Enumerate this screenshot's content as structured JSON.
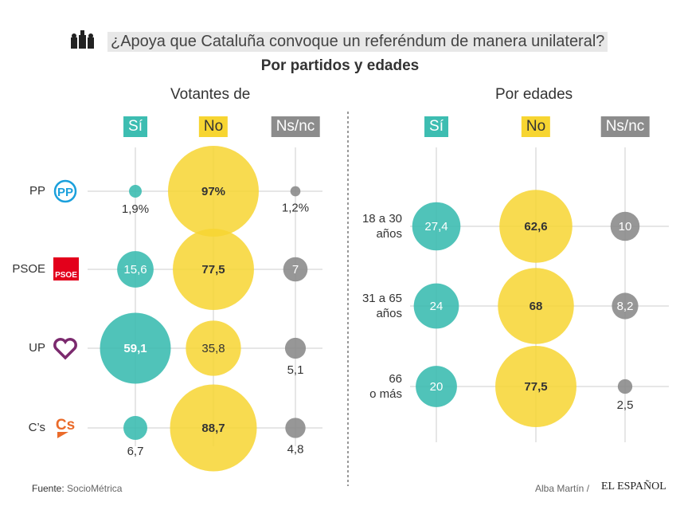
{
  "title": "¿Apoya que Cataluña convoque un referéndum de manera unilateral?",
  "subtitle": "Por partidos y edades",
  "source_label": "Fuente:",
  "source": "SocioMétrica",
  "credit": "Alba Martín /",
  "brand": "EL ESPAÑOL",
  "colors": {
    "si": "#3dbdb1",
    "no": "#f7d531",
    "nsnc": "#8c8c8c"
  },
  "icon": "raised-hands-icon",
  "chart_data": [
    {
      "type": "bubble",
      "title": "Votantes de",
      "columns": [
        "Sí",
        "No",
        "Ns/nc"
      ],
      "rows": [
        {
          "label": "PP",
          "logo": "pp-logo",
          "values": [
            1.9,
            97,
            1.2
          ],
          "labels": [
            "1,9%",
            "97%",
            "1,2%"
          ]
        },
        {
          "label": "PSOE",
          "logo": "psoe-logo",
          "values": [
            15.6,
            77.5,
            7
          ],
          "labels": [
            "15,6",
            "77,5",
            "7"
          ]
        },
        {
          "label": "UP",
          "logo": "up-logo",
          "values": [
            59.1,
            35.8,
            5.1
          ],
          "labels": [
            "59,1",
            "35,8",
            "5,1"
          ]
        },
        {
          "label": "C’s",
          "logo": "cs-logo",
          "values": [
            6.7,
            88.7,
            4.8
          ],
          "labels": [
            "6,7",
            "88,7",
            "4,8"
          ]
        }
      ]
    },
    {
      "type": "bubble",
      "title": "Por edades",
      "columns": [
        "Sí",
        "No",
        "Ns/nc"
      ],
      "rows": [
        {
          "label": "18 a 30\naños",
          "values": [
            27.4,
            62.6,
            10
          ],
          "labels": [
            "27,4",
            "62,6",
            "10"
          ]
        },
        {
          "label": "31 a 65\naños",
          "values": [
            24,
            68,
            8.2
          ],
          "labels": [
            "24",
            "68",
            "8,2"
          ]
        },
        {
          "label": "66\no más",
          "values": [
            20,
            77.5,
            2.5
          ],
          "labels": [
            "20",
            "77,5",
            "2,5"
          ]
        }
      ]
    }
  ]
}
